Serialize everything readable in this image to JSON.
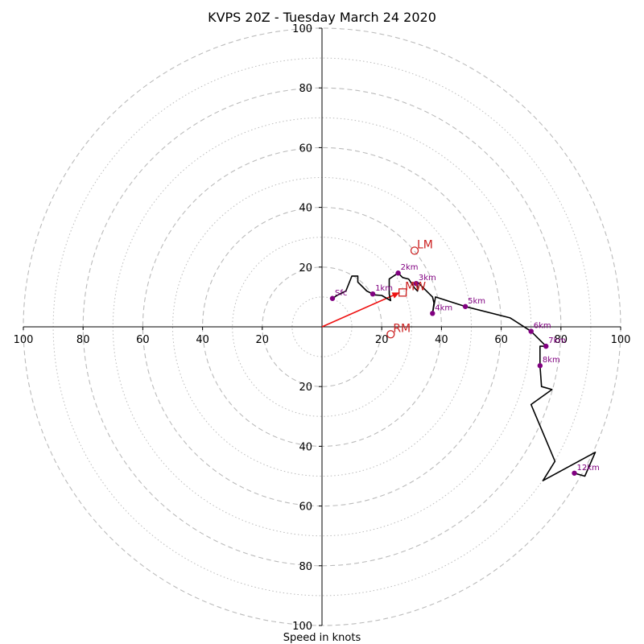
{
  "chart_data": {
    "type": "scatter",
    "subtype": "hodograph",
    "title": "KVPS 20Z - Tuesday March 24 2020",
    "xlabel": "Speed in knots",
    "ylim": [
      -100,
      100
    ],
    "xlim": [
      -100,
      100
    ],
    "ring_ticks": [
      {
        "label": "100",
        "value": 100
      },
      {
        "label": "80",
        "value": 80
      },
      {
        "label": "60",
        "value": 60
      },
      {
        "label": "40",
        "value": 40
      },
      {
        "label": "20",
        "value": 20
      }
    ],
    "rings_major": [
      20,
      40,
      60,
      80,
      100
    ],
    "rings_minor": [
      10,
      30,
      50,
      70,
      90
    ],
    "grid": true,
    "colors": {
      "trace": "#000000",
      "height_markers": "#800080",
      "storm_motion": "#cc2222",
      "shear_vector": "#ee1111",
      "grid": "#bbbbbb"
    },
    "trace": [
      [
        3.5,
        9.5
      ],
      [
        5,
        10.5
      ],
      [
        8,
        12
      ],
      [
        10,
        17
      ],
      [
        12,
        17
      ],
      [
        12,
        15
      ],
      [
        15,
        12
      ],
      [
        17,
        11
      ],
      [
        17.5,
        10.7
      ],
      [
        20,
        10.5
      ],
      [
        23,
        8.8
      ],
      [
        22.5,
        11
      ],
      [
        22.5,
        16
      ],
      [
        25.5,
        18
      ],
      [
        27,
        16.5
      ],
      [
        29,
        16
      ],
      [
        31,
        13
      ],
      [
        32,
        12
      ],
      [
        32,
        15
      ],
      [
        37,
        10
      ],
      [
        37.5,
        8
      ],
      [
        37,
        4.5
      ],
      [
        38,
        10
      ],
      [
        48,
        6.8
      ],
      [
        63,
        3
      ],
      [
        70,
        -1.5
      ],
      [
        75,
        -6.5
      ],
      [
        73,
        -6.5
      ],
      [
        73,
        -13
      ],
      [
        73.5,
        -20
      ],
      [
        77,
        -21
      ],
      [
        70,
        -26
      ],
      [
        78,
        -45
      ],
      [
        74,
        -51.5
      ],
      [
        91.5,
        -42
      ],
      [
        88,
        -50
      ],
      [
        84.5,
        -49
      ]
    ],
    "height_points": [
      {
        "label": "Sfc",
        "u": 3.5,
        "v": 9.5
      },
      {
        "label": "1km",
        "u": 17,
        "v": 11
      },
      {
        "label": "2km",
        "u": 25.5,
        "v": 18
      },
      {
        "label": "3km",
        "u": 31.5,
        "v": 14.5
      },
      {
        "label": "4km",
        "u": 37,
        "v": 4.5
      },
      {
        "label": "5km",
        "u": 48,
        "v": 6.8
      },
      {
        "label": "6km",
        "u": 70,
        "v": -1.5
      },
      {
        "label": "7km",
        "u": 75,
        "v": -6.5
      },
      {
        "label": "8km",
        "u": 73,
        "v": -13
      },
      {
        "label": "12km",
        "u": 84.5,
        "v": -49
      }
    ],
    "storm_motions": [
      {
        "label": "LM",
        "u": 31,
        "v": 25.5,
        "marker": "circle"
      },
      {
        "label": "MW",
        "u": 27,
        "v": 11.5,
        "marker": "square"
      },
      {
        "label": "RM",
        "u": 23,
        "v": -2.5,
        "marker": "circle"
      }
    ],
    "shear_vector": {
      "from": [
        0,
        0
      ],
      "to": [
        26,
        11.5
      ]
    }
  }
}
